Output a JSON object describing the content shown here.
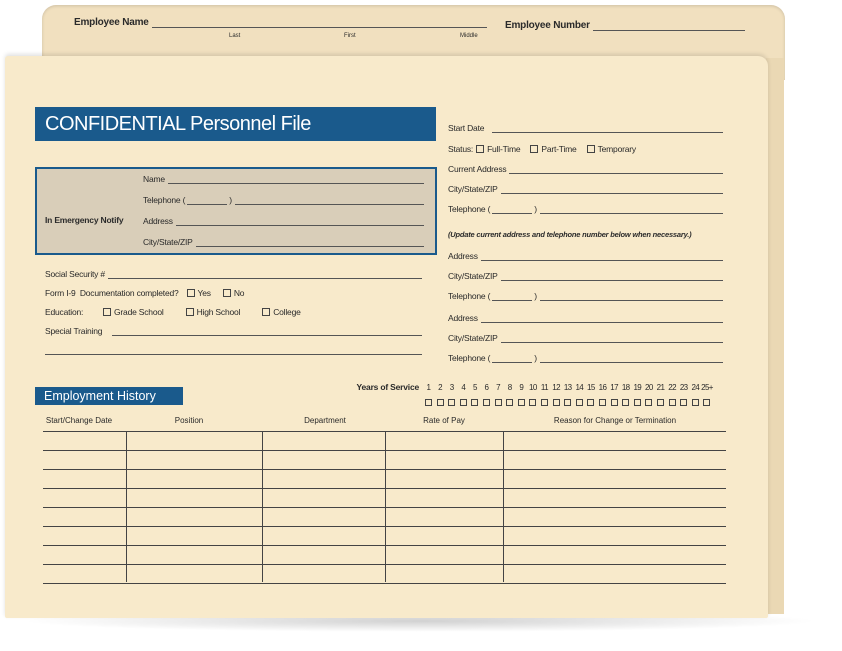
{
  "tab": {
    "employee_name_label": "Employee Name",
    "name_parts": [
      "Last",
      "First",
      "Middle"
    ],
    "employee_number_label": "Employee Number"
  },
  "header": {
    "title": "CONFIDENTIAL Personnel File"
  },
  "emergency": {
    "label": "In Emergency Notify",
    "name": "Name",
    "telephone": "Telephone",
    "address": "Address",
    "city": "City/State/ZIP"
  },
  "left": {
    "ssn": "Social Security #",
    "i9_label": "Form I-9",
    "i9_question": "Documentation completed?",
    "i9_options": [
      "Yes",
      "No"
    ],
    "education_label": "Education:",
    "education_options": [
      "Grade School",
      "High School",
      "College"
    ],
    "special_training": "Special Training"
  },
  "right": {
    "start_date": "Start Date",
    "status_label": "Status:",
    "status_options": [
      "Full-Time",
      "Part-Time",
      "Temporary"
    ],
    "current_address": "Current Address",
    "city": "City/State/ZIP",
    "telephone": "Telephone",
    "note": "(Update current address and telephone number below when necessary.)",
    "address": "Address"
  },
  "history": {
    "title": "Employment History",
    "years_label": "Years of Service",
    "years": [
      "1",
      "2",
      "3",
      "4",
      "5",
      "6",
      "7",
      "8",
      "9",
      "10",
      "11",
      "12",
      "13",
      "14",
      "15",
      "16",
      "17",
      "18",
      "19",
      "20",
      "21",
      "22",
      "23",
      "24",
      "25+"
    ],
    "columns": [
      "Start/Change Date",
      "Position",
      "Department",
      "Rate of Pay",
      "Reason for Change or Termination"
    ]
  },
  "colors": {
    "brand_blue": "#1a5a8c",
    "manila": "#f8eacb",
    "emergency_fill": "#d9ceb9"
  }
}
